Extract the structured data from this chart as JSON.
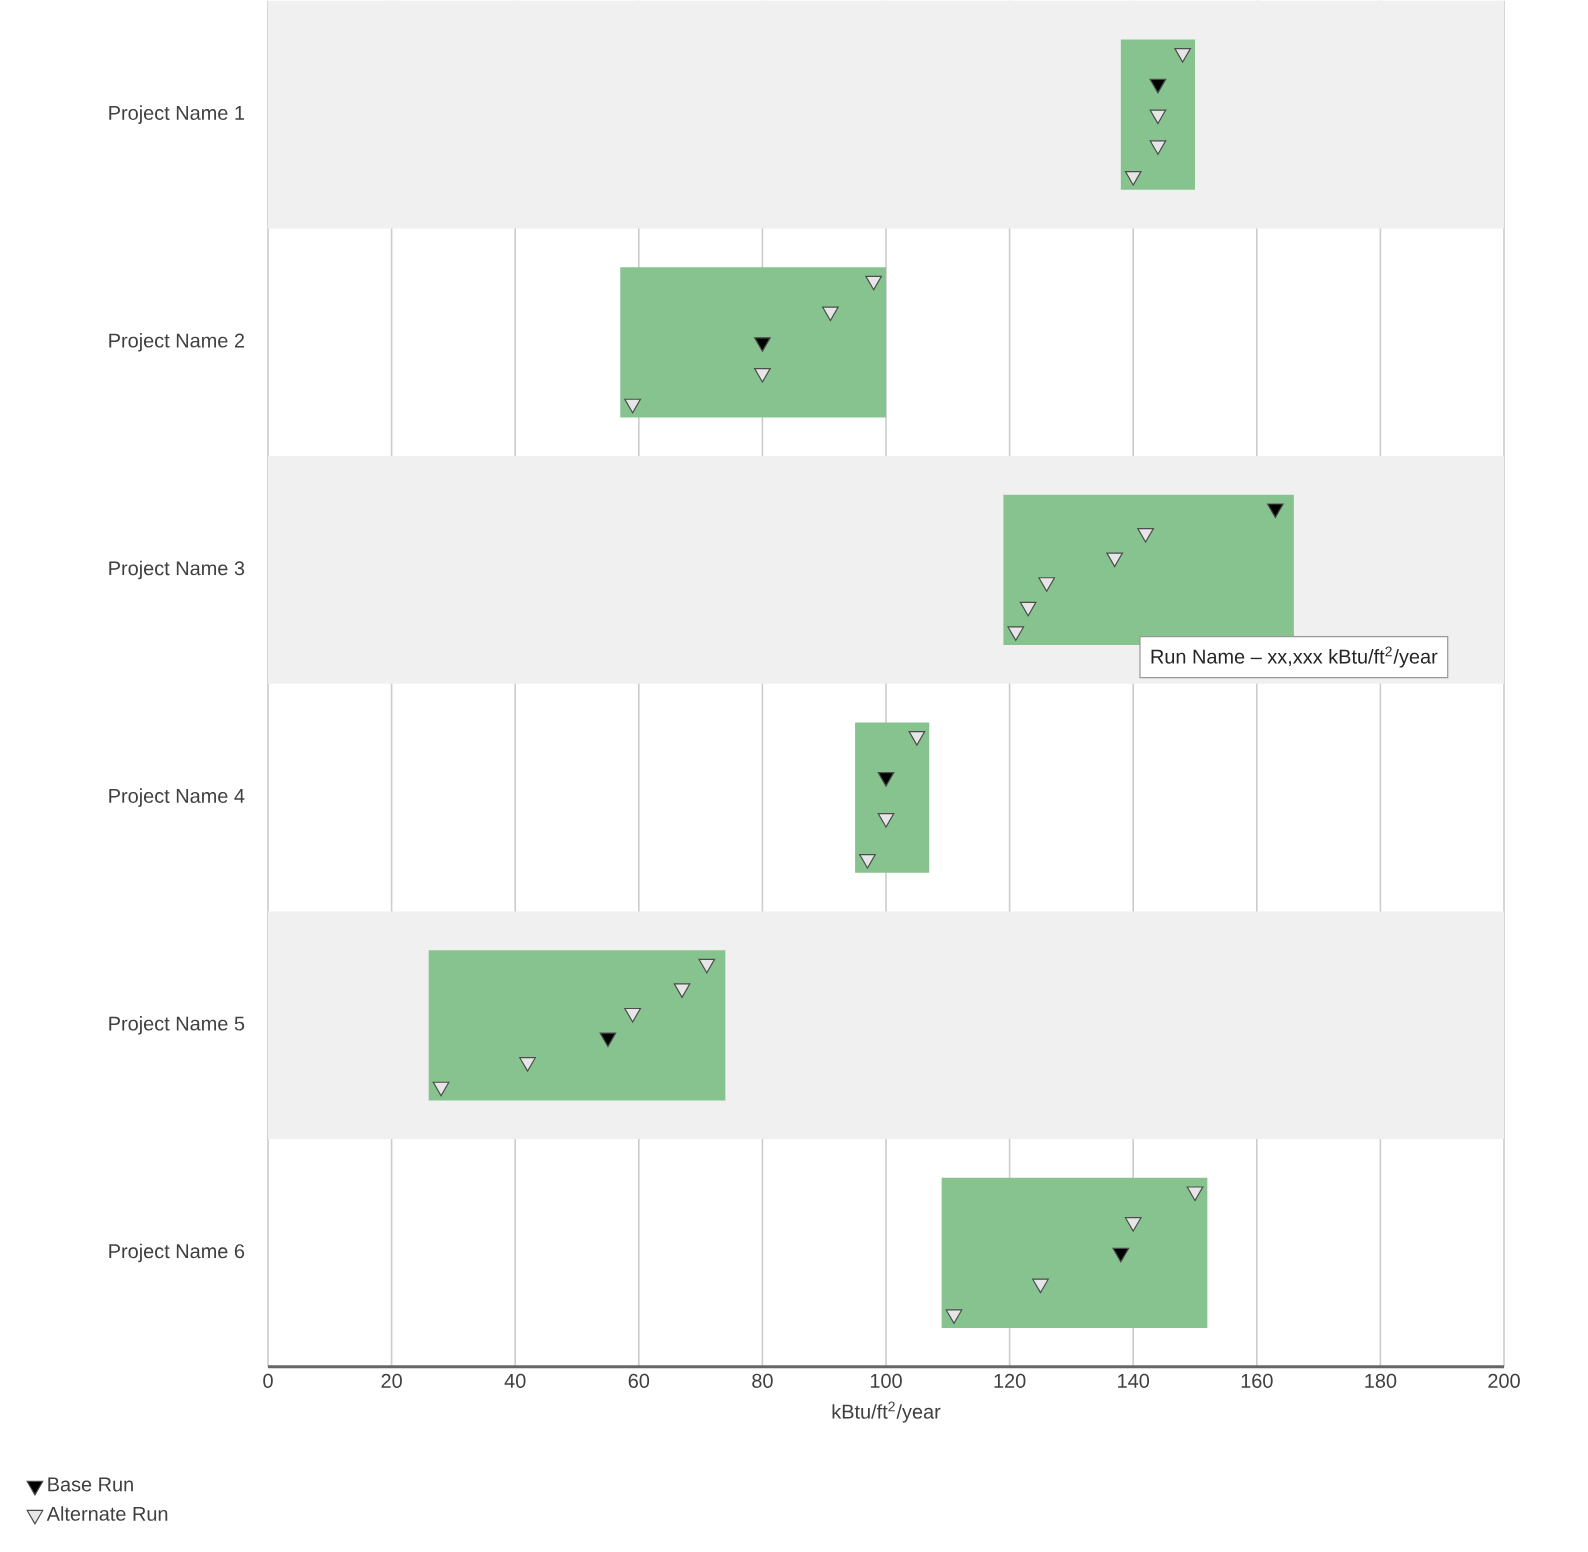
{
  "chart_data": {
    "type": "bar",
    "orientation": "horizontal",
    "xlabel": "kBtu/ft$^{2}$/year",
    "categories": [
      "Project Name 1",
      "Project Name 2",
      "Project Name 3",
      "Project Name 4",
      "Project Name 5",
      "Project Name 6"
    ],
    "xlim": [
      0,
      200
    ],
    "xticks": [
      0,
      20,
      40,
      60,
      80,
      100,
      120,
      140,
      160,
      180,
      200
    ],
    "grid": "x",
    "legend": "bottom left",
    "series": [
      {
        "color": "#86c38f",
        "base": [
          138,
          57,
          119,
          95,
          26,
          109
        ],
        "values": [
          12,
          43,
          47,
          12,
          48,
          43
        ]
      },
      {
        "type": "scatter",
        "name": "Base Run",
        "color": "#000000",
        "marker": "triangle",
        "values": [
          144,
          80,
          163,
          100,
          55,
          138
        ]
      },
      {
        "type": "scatter",
        "name": "Alternate Run",
        "color": "#e6e6e6",
        "marker": "triangle",
        "values": [
          140,
          59,
          121,
          97,
          28,
          111
        ]
      },
      {
        "type": "scatter",
        "color": "#e6e6e6",
        "marker": "triangle",
        "values": [
          144,
          80,
          123,
          100,
          42,
          125
        ]
      },
      {
        "type": "scatter",
        "color": "#e6e6e6",
        "marker": "triangle",
        "values": [
          144,
          91,
          126,
          105,
          59,
          140
        ]
      },
      {
        "type": "scatter",
        "color": "#e6e6e6",
        "marker": "triangle",
        "values": [
          148,
          98,
          137,
          null,
          67,
          150
        ]
      },
      {
        "type": "scatter",
        "color": "#e6e6e6",
        "marker": "triangle",
        "values": [
          null,
          null,
          142,
          null,
          71,
          null
        ]
      }
    ],
    "annotations": [
      "Run Name – xx,xxx kBtu/ft$^{2}$/year"
    ]
  }
}
